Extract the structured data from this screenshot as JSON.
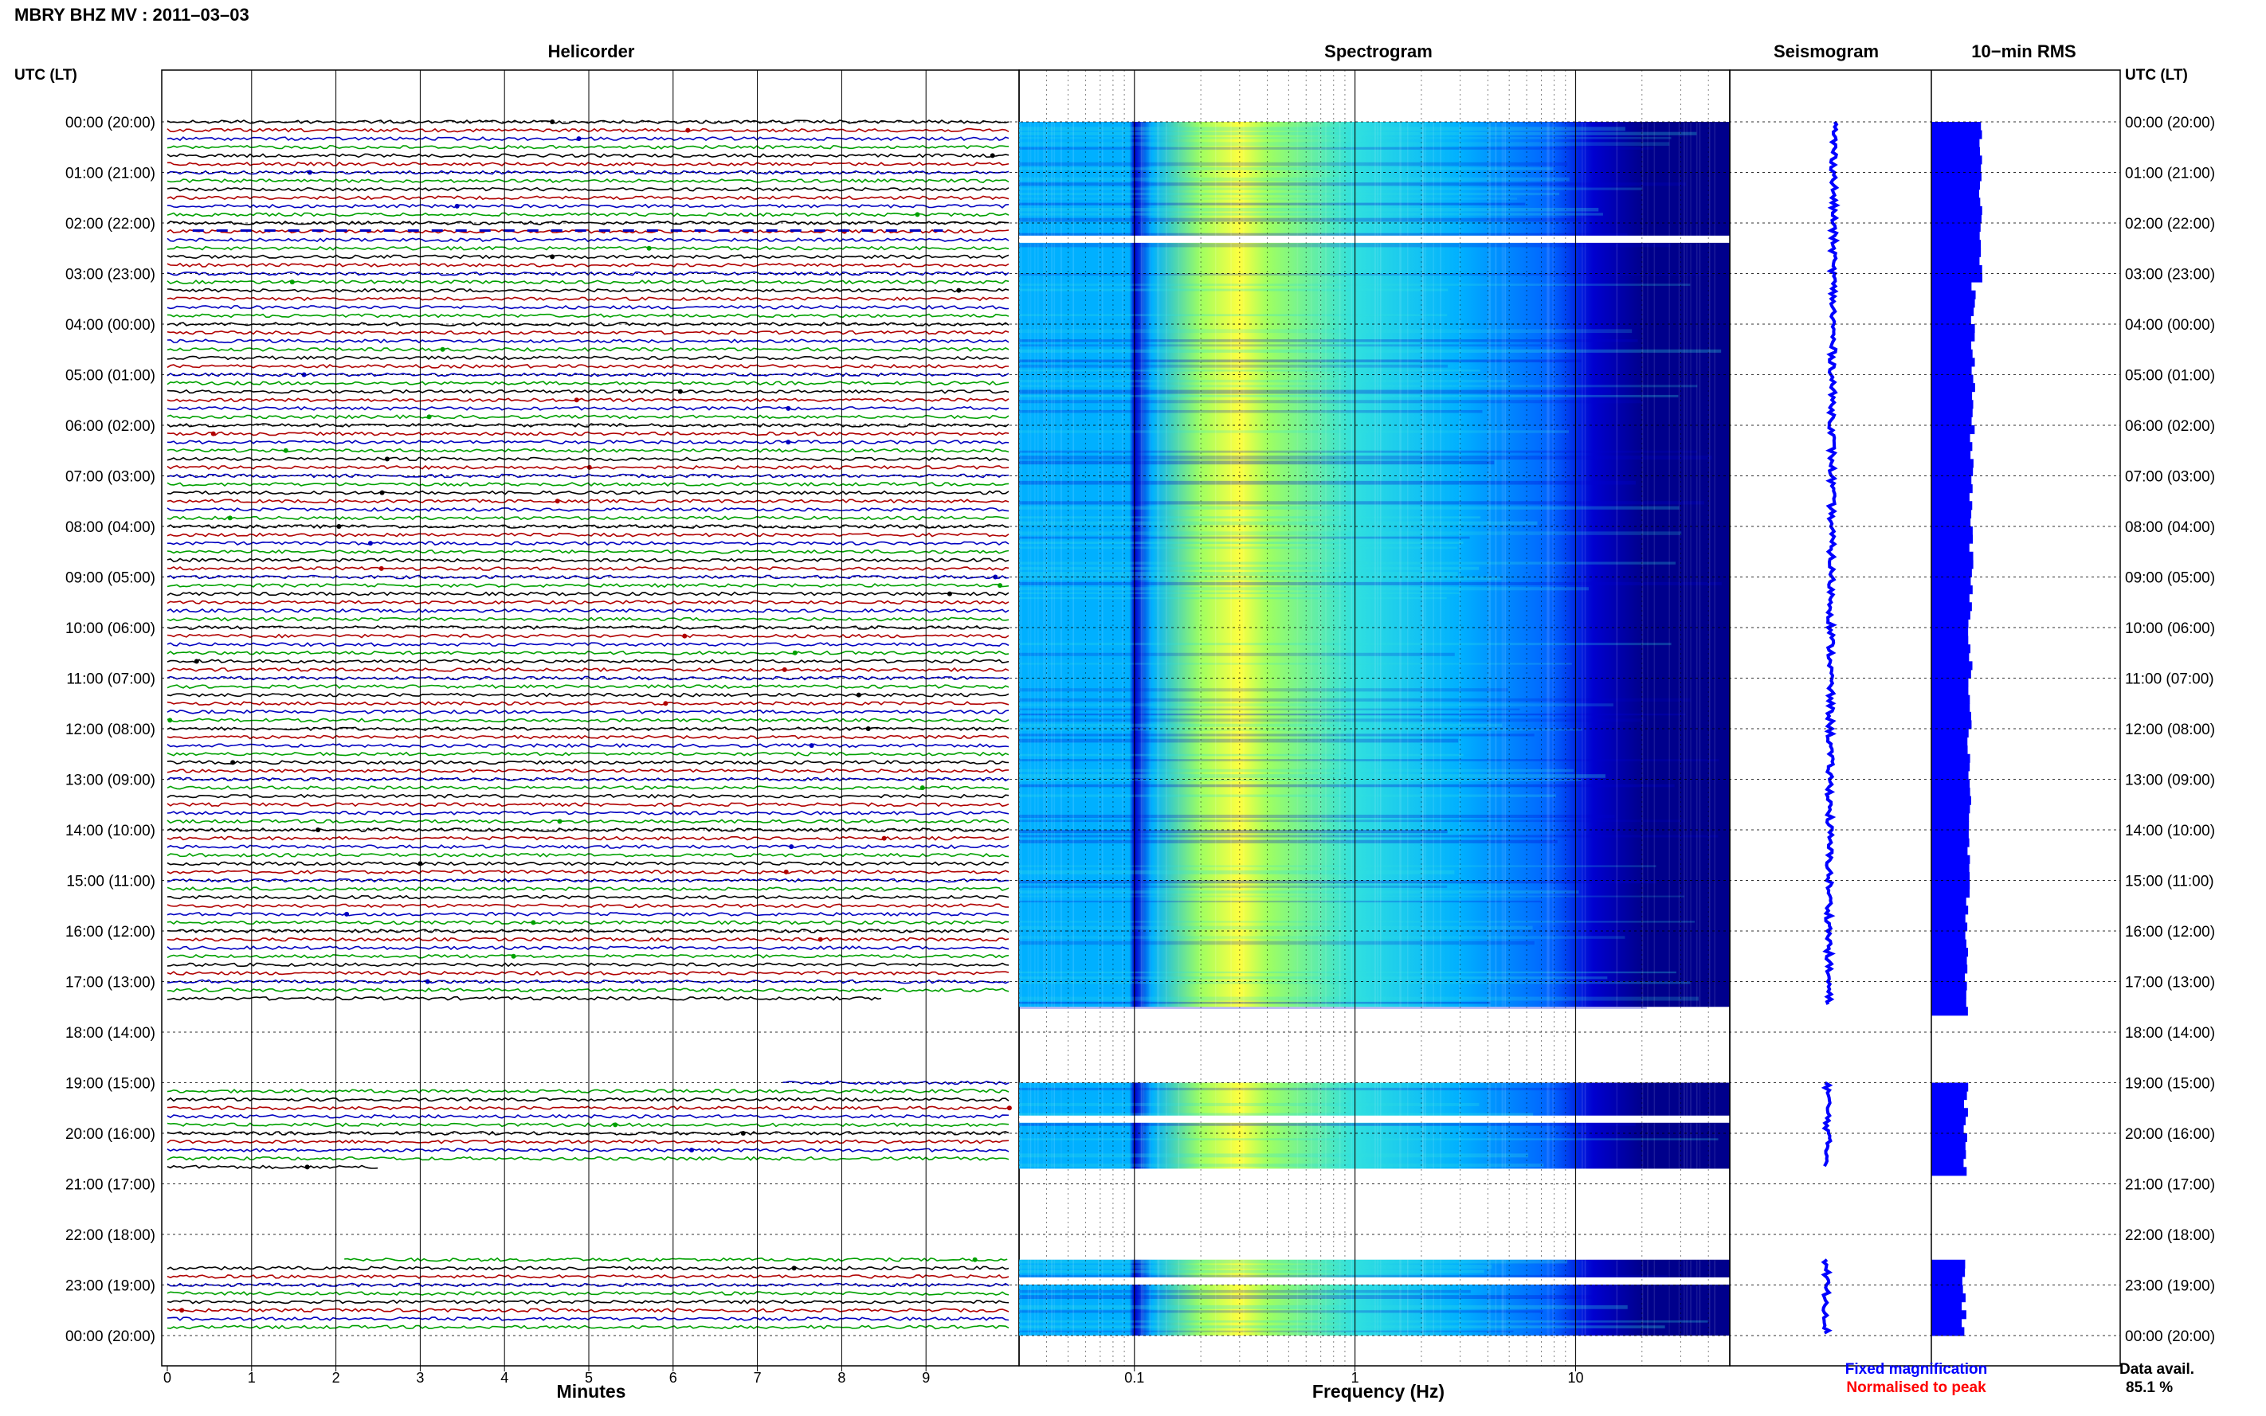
{
  "title": "MBRY BHZ MV : 2011–03–03",
  "panels": {
    "helicorder": "Helicorder",
    "spectrogram": "Spectrogram",
    "seismogram": "Seismogram",
    "rms": "10−min RMS"
  },
  "axis_labels": {
    "utc_left": "UTC (LT)",
    "utc_right": "UTC (LT)",
    "minutes": "Minutes",
    "frequency": "Frequency (Hz)"
  },
  "legend": {
    "fixed": "Fixed magnification",
    "normalised": "Normalised to peak",
    "fixed_color": "#0000ff",
    "normalised_color": "#ff0000"
  },
  "data_avail": {
    "label": "Data avail.",
    "value": "85.1 %"
  },
  "colors": {
    "trace_colors": [
      "#000000",
      "#b00000",
      "#0000c0",
      "#00a000"
    ],
    "spectrogram_colormap": [
      "#00008c",
      "#0000d0",
      "#0060ff",
      "#00b0ff",
      "#30e0e0",
      "#a0ff60",
      "#ffff40"
    ],
    "bar_blue": "#0000ff"
  },
  "chart_data": {
    "type": "heatmap",
    "time_rows": [
      "00:00 (20:00)",
      "01:00 (21:00)",
      "02:00 (22:00)",
      "03:00 (23:00)",
      "04:00 (00:00)",
      "05:00 (01:00)",
      "06:00 (02:00)",
      "07:00 (03:00)",
      "08:00 (04:00)",
      "09:00 (05:00)",
      "10:00 (06:00)",
      "11:00 (07:00)",
      "12:00 (08:00)",
      "13:00 (09:00)",
      "14:00 (10:00)",
      "15:00 (11:00)",
      "16:00 (12:00)",
      "17:00 (13:00)",
      "18:00 (14:00)",
      "19:00 (15:00)",
      "20:00 (16:00)",
      "21:00 (17:00)",
      "22:00 (18:00)",
      "23:00 (19:00)",
      "00:00 (20:00)"
    ],
    "minutes_ticks": [
      "0",
      "1",
      "2",
      "3",
      "4",
      "5",
      "6",
      "7",
      "8",
      "9"
    ],
    "minutes_range": [
      0,
      10
    ],
    "frequency_ticks": [
      "0.1",
      "1",
      "10"
    ],
    "frequency_range_hz": [
      0.03,
      50
    ],
    "frequency_scale": "log",
    "data_segments_hours": [
      [
        0,
        17.5
      ],
      [
        19,
        20.7
      ],
      [
        22.5,
        24
      ]
    ],
    "gap_rows_hours": [
      2.25,
      19.65,
      22.85
    ],
    "peak_band_hz": [
      0.2,
      0.4
    ],
    "data_availability_percent": 85.1,
    "grid": true
  }
}
